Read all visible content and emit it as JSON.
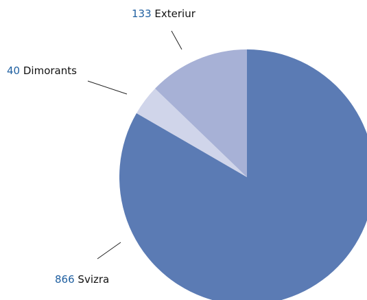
{
  "chart_data": {
    "type": "pie",
    "categories": [
      "Svizra",
      "Dimorants",
      "Exteriur"
    ],
    "values": [
      866,
      40,
      133
    ],
    "colors": [
      "#5b7bb4",
      "#d0d5ea",
      "#a7b1d6"
    ]
  }
}
